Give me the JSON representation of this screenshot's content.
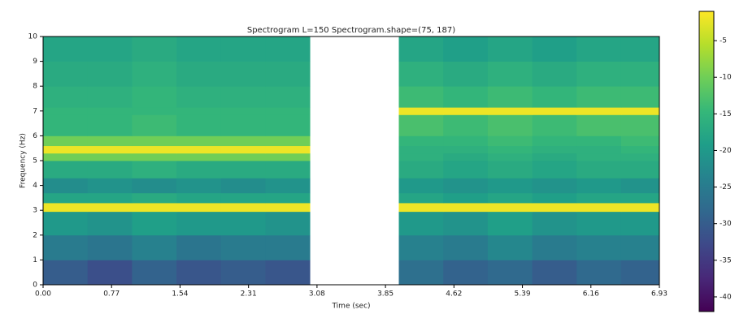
{
  "chart_data": {
    "type": "heatmap",
    "title": "Spectrogram L=150 Spectrogram.shape=(75, 187)",
    "x_label": "Time (sec)",
    "y_label": "Frequency (Hz)",
    "x": [
      0,
      0.5,
      1,
      1.5,
      2,
      2.5,
      3,
      3.5,
      4,
      4.5,
      5,
      5.5,
      6,
      6.5,
      6.93
    ],
    "y": [
      0,
      1,
      2,
      2.95,
      3.3,
      3.7,
      4.3,
      5,
      5.3,
      5.6,
      6,
      6.85,
      7.15,
      8,
      9,
      10
    ],
    "z": [
      [
        -30,
        -32,
        -29,
        -31,
        -30,
        -31,
        null,
        null,
        -27,
        -29,
        -28,
        -30,
        -28,
        -29
      ],
      [
        -25,
        -26,
        -24,
        -26,
        -25,
        -25,
        null,
        null,
        -24,
        -25,
        -23,
        -25,
        -24,
        -24
      ],
      [
        -20,
        -21,
        -19,
        -20,
        -20,
        -21,
        null,
        null,
        -20,
        -21,
        -19,
        -21,
        -20,
        -20
      ],
      [
        -2,
        -2,
        -2,
        -2,
        -2,
        -2,
        null,
        null,
        -2,
        -2,
        -2,
        -2,
        -2,
        -2
      ],
      [
        -18,
        -18,
        -17,
        -18,
        -18,
        -18,
        null,
        null,
        -18,
        -19,
        -18,
        -19,
        -18,
        -18
      ],
      [
        -22,
        -21,
        -22,
        -21,
        -22,
        -21,
        null,
        null,
        -20,
        -21,
        -20,
        -21,
        -20,
        -21
      ],
      [
        -17,
        -17,
        -16,
        -17,
        -17,
        -17,
        null,
        null,
        -17,
        -18,
        -17,
        -18,
        -17,
        -17
      ],
      [
        -10,
        -10,
        -10,
        -10,
        -10,
        -10,
        null,
        null,
        -16,
        -17,
        -16,
        -17,
        -16,
        -16
      ],
      [
        -2,
        -2,
        -2,
        -2,
        -2,
        -2,
        null,
        null,
        -16,
        -16,
        -15,
        -16,
        -16,
        -15
      ],
      [
        -10,
        -10,
        -10,
        -10,
        -10,
        -10,
        null,
        null,
        -15,
        -15,
        -14,
        -15,
        -15,
        -14
      ],
      [
        -15,
        -15,
        -14,
        -15,
        -15,
        -15,
        null,
        null,
        -13,
        -14,
        -13,
        -14,
        -13,
        -13
      ],
      [
        -15,
        -15,
        -15,
        -15,
        -15,
        -15,
        null,
        null,
        -2,
        -2,
        -2,
        -2,
        -2,
        -2
      ],
      [
        -16,
        -16,
        -15,
        -16,
        -16,
        -16,
        null,
        null,
        -14,
        -15,
        -14,
        -15,
        -14,
        -14
      ],
      [
        -17,
        -17,
        -16,
        -17,
        -17,
        -17,
        null,
        null,
        -16,
        -17,
        -16,
        -17,
        -16,
        -16
      ],
      [
        -18,
        -18,
        -17,
        -18,
        -18,
        -18,
        null,
        null,
        -18,
        -19,
        -18,
        -19,
        -18,
        -18
      ]
    ],
    "xlim": [
      0,
      6.93
    ],
    "ylim": [
      0,
      10
    ],
    "xticks": [
      {
        "value": 0,
        "label": "0.00"
      },
      0.77,
      1.54,
      2.31,
      3.08,
      3.85,
      4.62,
      5.39,
      6.16,
      6.93
    ],
    "yticks": [
      0,
      1,
      2,
      3,
      4,
      5,
      6,
      7,
      8,
      9,
      10
    ],
    "zlim": [
      -42,
      -1
    ],
    "zticks": [
      -5,
      -10,
      -15,
      -20,
      -25,
      -30,
      -35,
      -40
    ],
    "colormap": "viridis"
  }
}
